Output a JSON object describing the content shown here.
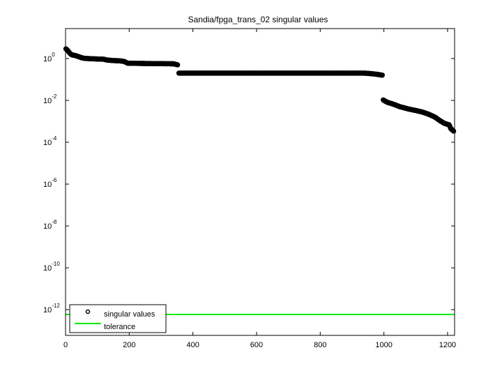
{
  "chart_data": {
    "type": "scatter",
    "title": "Sandia/fpga_trans_02 singular values",
    "xlabel": "",
    "ylabel": "",
    "xscale": "linear",
    "yscale": "log",
    "xlim": [
      0,
      1222
    ],
    "ylim": [
      5.9e-14,
      27
    ],
    "grid": false,
    "legend_position": "lower left",
    "x_ticks": [
      0,
      200,
      400,
      600,
      800,
      1000,
      1200
    ],
    "x_tick_labels": [
      "0",
      "200",
      "400",
      "600",
      "800",
      "1000",
      "1200"
    ],
    "y_ticks": [
      1,
      0.01,
      0.0001,
      1e-06,
      1e-08,
      1e-10,
      1e-12
    ],
    "y_tick_labels": [
      {
        "base": "10",
        "exp": "0"
      },
      {
        "base": "10",
        "exp": "-2"
      },
      {
        "base": "10",
        "exp": "-4"
      },
      {
        "base": "10",
        "exp": "-6"
      },
      {
        "base": "10",
        "exp": "-8"
      },
      {
        "base": "10",
        "exp": "-10"
      },
      {
        "base": "10",
        "exp": "-12"
      }
    ],
    "series": [
      {
        "name": "singular values",
        "style": "black circle markers",
        "color": "#000000",
        "points": [
          [
            1,
            2.9
          ],
          [
            5,
            2.6
          ],
          [
            10,
            2.1
          ],
          [
            15,
            1.7
          ],
          [
            20,
            1.5
          ],
          [
            30,
            1.4
          ],
          [
            40,
            1.25
          ],
          [
            50,
            1.1
          ],
          [
            60,
            1.02
          ],
          [
            80,
            0.98
          ],
          [
            100,
            0.95
          ],
          [
            120,
            0.93
          ],
          [
            130,
            0.85
          ],
          [
            150,
            0.8
          ],
          [
            170,
            0.78
          ],
          [
            185,
            0.72
          ],
          [
            195,
            0.6
          ],
          [
            250,
            0.58
          ],
          [
            300,
            0.57
          ],
          [
            340,
            0.56
          ],
          [
            352,
            0.5
          ],
          [
            356,
            0.2
          ],
          [
            400,
            0.2
          ],
          [
            500,
            0.2
          ],
          [
            600,
            0.2
          ],
          [
            700,
            0.2
          ],
          [
            800,
            0.2
          ],
          [
            900,
            0.2
          ],
          [
            940,
            0.2
          ],
          [
            960,
            0.19
          ],
          [
            980,
            0.175
          ],
          [
            995,
            0.16
          ],
          [
            998,
            0.0105
          ],
          [
            1010,
            0.0082
          ],
          [
            1030,
            0.0066
          ],
          [
            1050,
            0.005
          ],
          [
            1080,
            0.0038
          ],
          [
            1100,
            0.0033
          ],
          [
            1120,
            0.0028
          ],
          [
            1140,
            0.0022
          ],
          [
            1160,
            0.0016
          ],
          [
            1175,
            0.0011
          ],
          [
            1190,
            0.0008
          ],
          [
            1205,
            0.00068
          ],
          [
            1210,
            0.00045
          ],
          [
            1220,
            0.00033
          ]
        ]
      },
      {
        "name": "tolerance",
        "style": "green line",
        "color": "#00ee00",
        "y": 5.9e-13
      }
    ]
  },
  "legend": {
    "items": [
      {
        "label": "singular values",
        "kind": "marker"
      },
      {
        "label": "tolerance",
        "kind": "line"
      }
    ]
  },
  "colors": {
    "markers": "#000000",
    "tolerance": "#00ee00",
    "axes": "#000000"
  }
}
